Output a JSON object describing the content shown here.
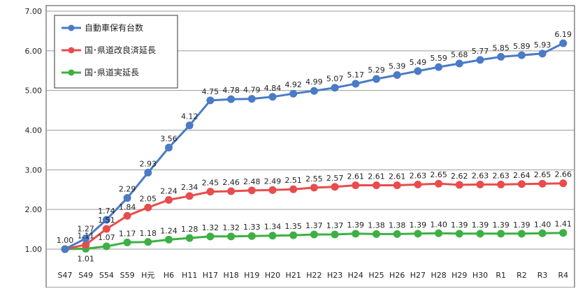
{
  "chart_data": {
    "type": "line",
    "categories": [
      "S47",
      "S49",
      "S54",
      "S59",
      "H元",
      "H6",
      "H11",
      "H17",
      "H18",
      "H19",
      "H20",
      "H21",
      "H22",
      "H23",
      "H24",
      "H25",
      "H26",
      "H27",
      "H28",
      "H29",
      "H30",
      "R1",
      "R2",
      "R3",
      "R4"
    ],
    "ylim": [
      1.0,
      7.0
    ],
    "yticks": [
      "1.00",
      "2.00",
      "3.00",
      "4.00",
      "5.00",
      "6.00",
      "7.00"
    ],
    "grid": true,
    "legend_position": "top-left",
    "series": [
      {
        "name": "自動車保有台数",
        "color": "#4A7BC6",
        "values": [
          1.0,
          1.27,
          1.74,
          2.29,
          2.93,
          3.56,
          4.12,
          4.75,
          4.78,
          4.79,
          4.84,
          4.92,
          4.99,
          5.07,
          5.17,
          5.29,
          5.39,
          5.49,
          5.59,
          5.68,
          5.77,
          5.85,
          5.89,
          5.93,
          6.19
        ],
        "labels": [
          "1.00",
          "1.27",
          "1.74",
          "2.29",
          "2.93",
          "3.56",
          "4.12",
          "4.75",
          "4.78",
          "4.79",
          "4.84",
          "4.92",
          "4.99",
          "5.07",
          "5.17",
          "5.29",
          "5.39",
          "5.49",
          "5.59",
          "5.68",
          "5.77",
          "5.85",
          "5.89",
          "5.93",
          "6.19"
        ]
      },
      {
        "name": "国･県道改良済延長",
        "color": "#E84C4C",
        "values": [
          1.0,
          1.11,
          1.51,
          1.84,
          2.05,
          2.24,
          2.34,
          2.45,
          2.46,
          2.48,
          2.49,
          2.51,
          2.55,
          2.57,
          2.61,
          2.61,
          2.61,
          2.63,
          2.65,
          2.62,
          2.63,
          2.63,
          2.64,
          2.65,
          2.66
        ],
        "labels": [
          "",
          "1.11",
          "1.51",
          "1.84",
          "2.05",
          "2.24",
          "2.34",
          "2.45",
          "2.46",
          "2.48",
          "2.49",
          "2.51",
          "2.55",
          "2.57",
          "2.61",
          "2.61",
          "2.61",
          "2.63",
          "2.65",
          "2.62",
          "2.63",
          "2.63",
          "2.64",
          "2.65",
          "2.66"
        ]
      },
      {
        "name": "国･県道実延長",
        "color": "#3CB043",
        "values": [
          1.0,
          1.01,
          1.07,
          1.17,
          1.18,
          1.24,
          1.28,
          1.32,
          1.32,
          1.33,
          1.34,
          1.35,
          1.37,
          1.37,
          1.39,
          1.38,
          1.38,
          1.39,
          1.4,
          1.39,
          1.39,
          1.39,
          1.39,
          1.4,
          1.41
        ],
        "labels": [
          "",
          "1.01",
          "1.07",
          "1.17",
          "1.18",
          "1.24",
          "1.28",
          "1.32",
          "1.32",
          "1.33",
          "1.34",
          "1.35",
          "1.37",
          "1.37",
          "1.39",
          "1.38",
          "1.38",
          "1.39",
          "1.40",
          "1.39",
          "1.39",
          "1.39",
          "1.39",
          "1.40",
          "1.41"
        ]
      }
    ]
  }
}
